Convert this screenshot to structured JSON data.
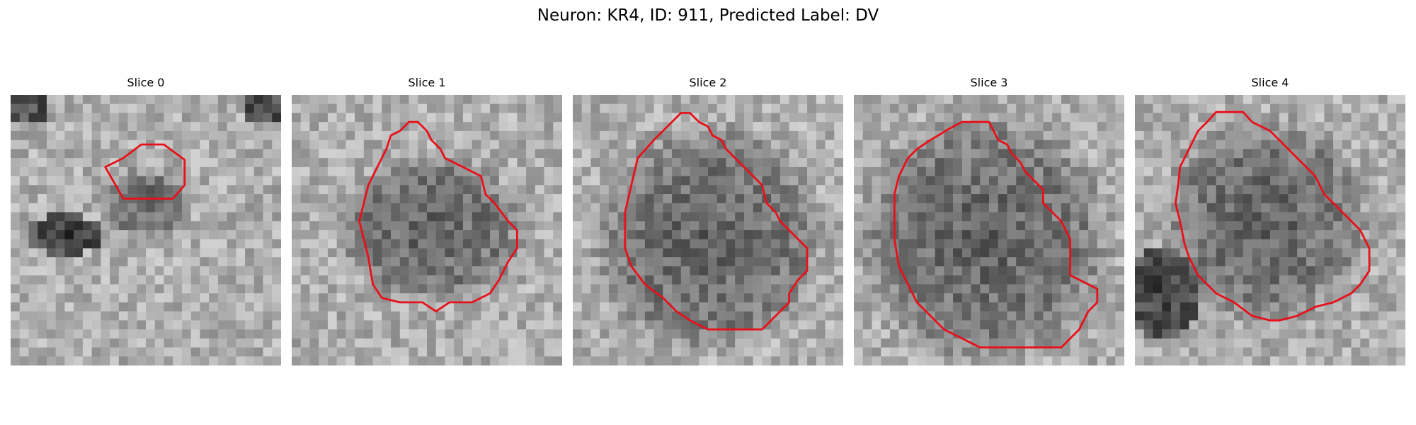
{
  "figure": {
    "title": "Neuron: KR4, ID: 911, Predicted Label: DV",
    "contour_color": "#e8101a"
  },
  "panels": [
    {
      "title": "Slice 0",
      "image": "noisy grayscale microscopy crop, small faint neuron outlined near upper center, dark blob at left"
    },
    {
      "title": "Slice 1",
      "image": "noisy grayscale microscopy crop, dark neuron body outlined in center"
    },
    {
      "title": "Slice 2",
      "image": "noisy grayscale microscopy crop, large dark neuron body outlined"
    },
    {
      "title": "Slice 3",
      "image": "noisy grayscale microscopy crop, largest dark neuron body outlined"
    },
    {
      "title": "Slice 4",
      "image": "noisy grayscale microscopy crop, dark neuron body outlined, dark region at lower left"
    }
  ]
}
